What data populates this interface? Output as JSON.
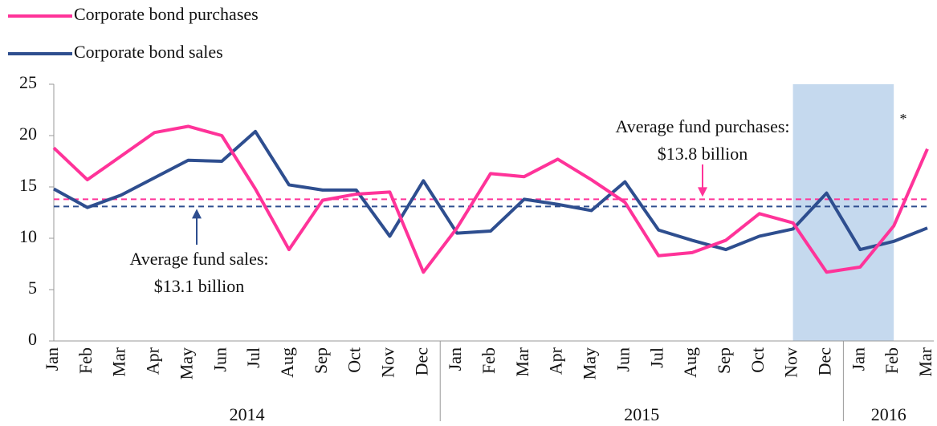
{
  "chart_data": {
    "type": "line",
    "categories": [
      "Jan",
      "Feb",
      "Mar",
      "Apr",
      "May",
      "Jun",
      "Jul",
      "Aug",
      "Sep",
      "Oct",
      "Nov",
      "Dec",
      "Jan",
      "Feb",
      "Mar",
      "Apr",
      "May",
      "Jun",
      "Jul",
      "Aug",
      "Sep",
      "Oct",
      "Nov",
      "Dec",
      "Jan",
      "Feb",
      "Mar"
    ],
    "x_groups": [
      "2014",
      "2015",
      "2016"
    ],
    "series": [
      {
        "name": "Corporate bond purchases",
        "color": "#ff3399",
        "values": [
          18.8,
          15.7,
          18,
          20.3,
          20.9,
          20,
          14.8,
          8.9,
          13.7,
          14.3,
          14.5,
          6.7,
          11,
          16.3,
          16,
          17.7,
          15.7,
          13.5,
          8.3,
          8.6,
          9.8,
          12.4,
          11.5,
          6.7,
          7.2,
          11.2,
          18.7
        ]
      },
      {
        "name": "Corporate bond sales",
        "color": "#2e4e8f",
        "values": [
          14.8,
          13,
          14.2,
          15.9,
          17.6,
          17.5,
          20.4,
          15.2,
          14.7,
          14.7,
          10.2,
          15.6,
          10.5,
          10.7,
          13.8,
          13.3,
          12.7,
          15.5,
          10.8,
          9.8,
          8.9,
          10.2,
          10.9,
          14.4,
          8.9,
          9.7,
          11
        ]
      }
    ],
    "reference_lines": [
      {
        "label": [
          "Average fund purchases:",
          "$13.8 billion"
        ],
        "value": 13.8,
        "color": "#ff3399"
      },
      {
        "label": [
          "Average fund sales:",
          "$13.1 billion"
        ],
        "value": 13.1,
        "color": "#2e4e8f"
      }
    ],
    "highlight": {
      "from": 22,
      "to": 25,
      "color": "#c5d9ee"
    },
    "note": "*",
    "ylim": [
      0,
      25
    ],
    "yticks": [
      0,
      5,
      10,
      15,
      20,
      25
    ]
  }
}
